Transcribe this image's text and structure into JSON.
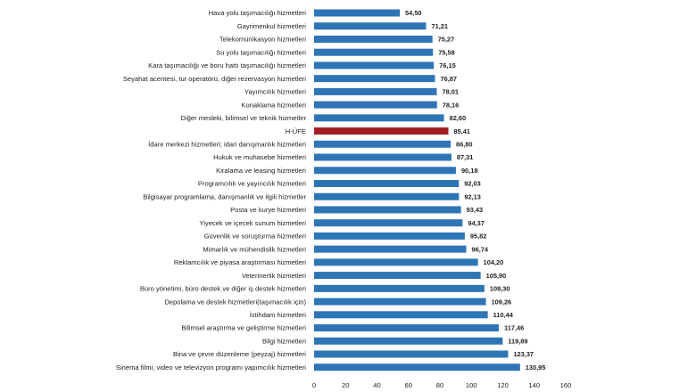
{
  "chart_data": {
    "type": "bar",
    "orientation": "horizontal",
    "title": "",
    "xlabel": "",
    "ylabel": "",
    "xlim": [
      0,
      160
    ],
    "xticks": [
      "0",
      "20",
      "40",
      "60",
      "80",
      "100",
      "120",
      "140",
      "160"
    ],
    "grid": false,
    "legend": "none",
    "colors": {
      "default": "#2e75b6",
      "highlight": "#a51d24"
    },
    "highlight_category": "H-ÜFE",
    "categories": [
      "Hava yolu taşımacılığı hizmetleri",
      "Gayrimenkul hizmetleri",
      "Telekomünikasyon hizmetleri",
      "Su yolu taşımacılığı hizmetleri",
      "Kara taşımacılığı ve boru hattı taşımacılığı hizmetleri",
      "Seyahat acentesi, tur operatörü, diğer rezervasyon hizmetleri",
      "Yayımcılık hizmetleri",
      "Konaklama hizmetleri",
      "Diğer mesleki, bilimsel ve teknik hizmetler",
      "H-ÜFE",
      "İdare merkezi hizmetleri; idari danışmanlık hizmetleri",
      "Hukuk ve muhasebe hizmetleri",
      "Kiralama ve leasing hizmetleri",
      "Programcılık ve yayıncılık hizmetleri",
      "Bilgisayar programlama, danışmanlık ve ilgili hizmetler",
      "Posta ve kurye hizmetleri",
      "Yiyecek ve içecek sunum hizmetleri",
      "Güvenlik ve soruşturma hizmetleri",
      "Mimarlık ve mühendislik hizmetleri",
      "Reklamcılık ve piyasa araştırması hizmetleri",
      "Veterinerlik hizmetleri",
      "Büro yönetimi, büro destek ve diğer iş destek hizmetleri",
      "Depolama ve destek hizmetleri(taşımacılık için)",
      "İstihdam hizmetleri",
      "Bilimsel araştırma ve geliştirme hizmetleri",
      "Bilgi hizmetleri",
      "Bina ve çevre düzenleme (peyzaj) hizmetleri",
      "Sinema filmi, video ve televizyon programı yapımcılık hizmetleri"
    ],
    "values": [
      54.5,
      71.21,
      75.27,
      75.58,
      76.15,
      76.87,
      78.01,
      78.16,
      82.6,
      85.41,
      86.8,
      87.31,
      90.18,
      92.03,
      92.13,
      93.43,
      94.37,
      95.82,
      96.74,
      104.2,
      105.9,
      108.3,
      109.26,
      110.44,
      117.46,
      119.89,
      123.37,
      130.95
    ],
    "value_labels": [
      "54,50",
      "71,21",
      "75,27",
      "75,58",
      "76,15",
      "76,87",
      "78,01",
      "78,16",
      "82,60",
      "85,41",
      "86,80",
      "87,31",
      "90,18",
      "92,03",
      "92,13",
      "93,43",
      "94,37",
      "95,82",
      "96,74",
      "104,20",
      "105,90",
      "108,30",
      "109,26",
      "110,44",
      "117,46",
      "119,89",
      "123,37",
      "130,95"
    ]
  }
}
